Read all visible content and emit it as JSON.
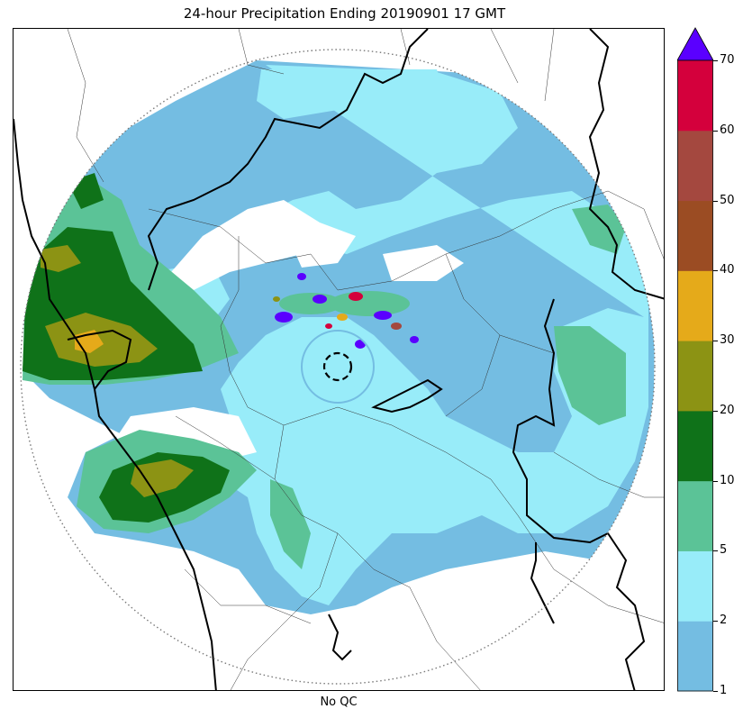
{
  "title": "24-hour Precipitation Ending 20190901 17 GMT",
  "xlabel": "No QC",
  "colorbar": {
    "levels": [
      "1",
      "2",
      "5",
      "10",
      "20",
      "30",
      "40",
      "50",
      "60",
      "70"
    ],
    "colors": [
      "#74bde2",
      "#98ecf9",
      "#5bc397",
      "#0f7219",
      "#8c9314",
      "#e5aa1a",
      "#9b4c23",
      "#a4483f",
      "#d4003c"
    ],
    "extend_color": "#5a00ff"
  },
  "map": {
    "background": "#ffffff",
    "radar_range_ring": "dotted",
    "radar_site_marker": "dashed-circle"
  }
}
